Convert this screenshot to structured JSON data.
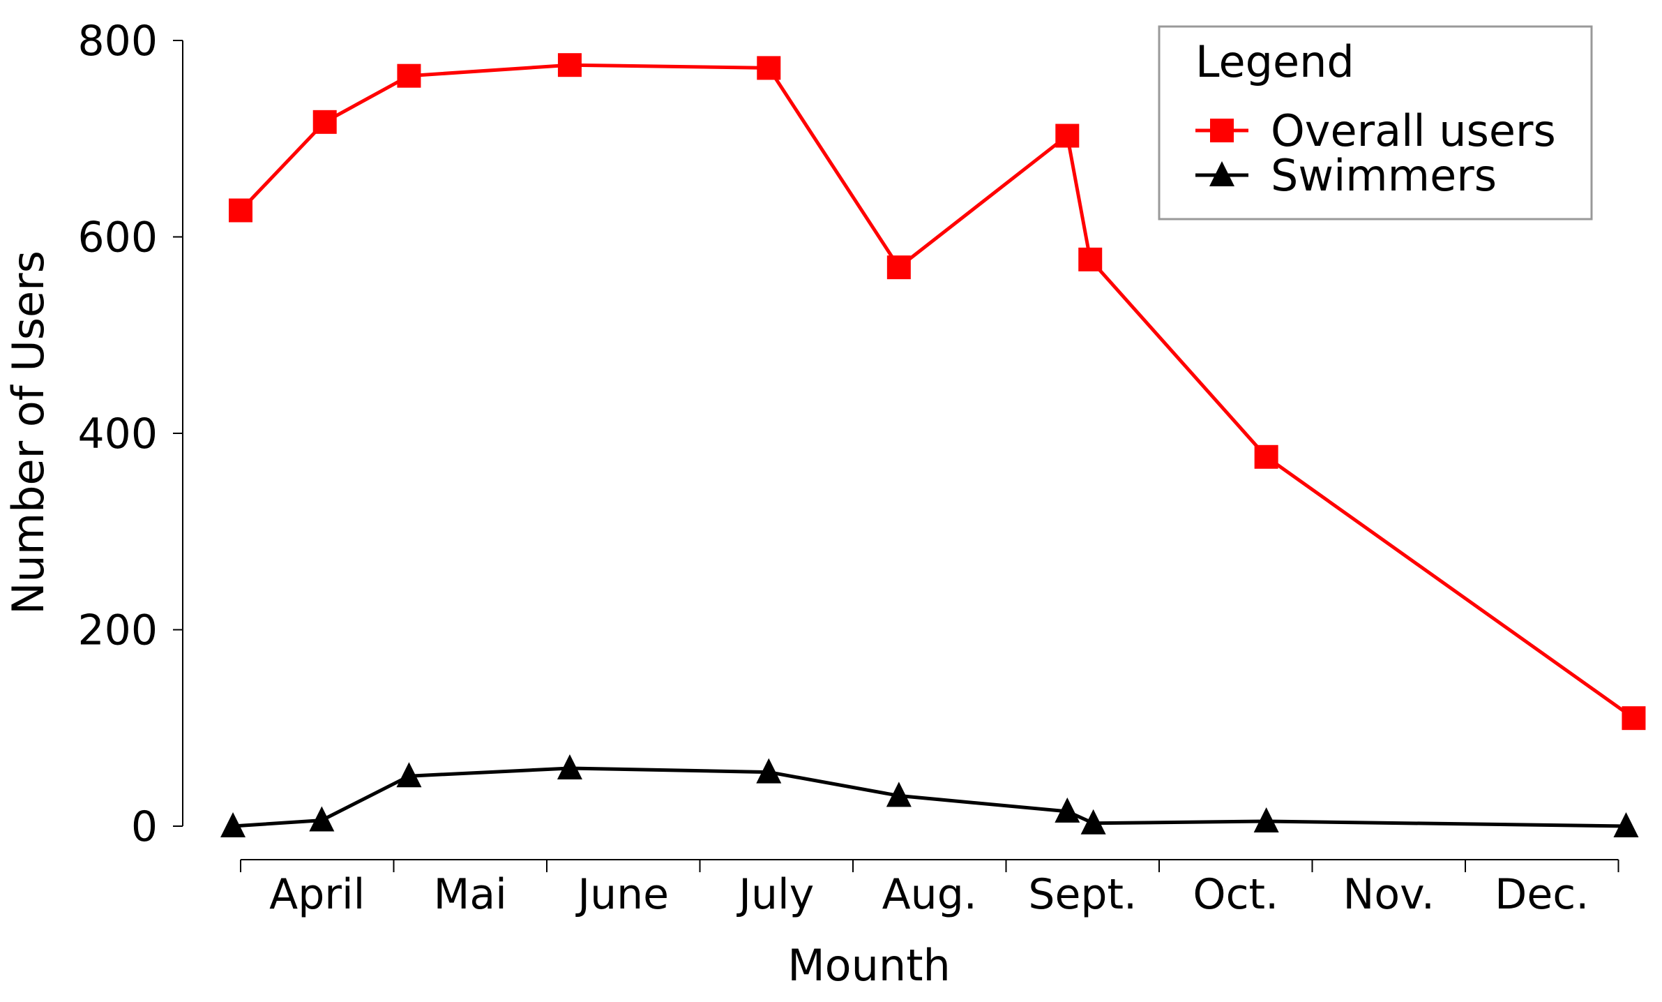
{
  "chart_data": {
    "type": "line",
    "title": "",
    "xlabel": "Mounth",
    "ylabel": "Number of Users",
    "ylim": [
      0,
      800
    ],
    "yticks": [
      0,
      200,
      400,
      600,
      800
    ],
    "month_labels": [
      "April",
      "Mai",
      "June",
      "July",
      "Aug.",
      "Sept.",
      "Oct.",
      "Nov.",
      "Dec."
    ],
    "grid": false,
    "legend": {
      "title": "Legend",
      "placement": "top-right"
    },
    "series": [
      {
        "name": "Overall users",
        "color": "#ff0000",
        "marker": "square",
        "points": [
          {
            "x": 0.0,
            "y": 627
          },
          {
            "x": 0.55,
            "y": 717
          },
          {
            "x": 1.1,
            "y": 764
          },
          {
            "x": 2.15,
            "y": 775
          },
          {
            "x": 3.45,
            "y": 772
          },
          {
            "x": 4.3,
            "y": 569
          },
          {
            "x": 5.4,
            "y": 703
          },
          {
            "x": 5.55,
            "y": 577
          },
          {
            "x": 6.7,
            "y": 376
          },
          {
            "x": 9.1,
            "y": 110
          }
        ]
      },
      {
        "name": "Swimmers",
        "color": "#000000",
        "marker": "triangle",
        "points": [
          {
            "x": -0.05,
            "y": 0
          },
          {
            "x": 0.53,
            "y": 6
          },
          {
            "x": 1.1,
            "y": 51
          },
          {
            "x": 2.15,
            "y": 59
          },
          {
            "x": 3.45,
            "y": 55
          },
          {
            "x": 4.3,
            "y": 31
          },
          {
            "x": 5.4,
            "y": 15
          },
          {
            "x": 5.57,
            "y": 3
          },
          {
            "x": 6.7,
            "y": 5
          },
          {
            "x": 9.05,
            "y": 0
          }
        ]
      }
    ]
  }
}
